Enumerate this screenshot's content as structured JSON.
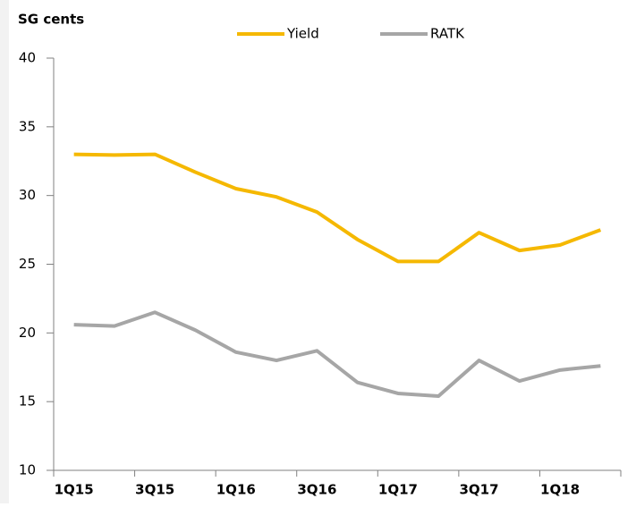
{
  "chart_data": {
    "type": "line",
    "y_label": "SG cents",
    "categories": [
      "1Q15",
      null,
      "3Q15",
      null,
      "1Q16",
      null,
      "3Q16",
      null,
      "1Q17",
      null,
      "3Q17",
      null,
      "1Q18",
      null
    ],
    "series": [
      {
        "name": "Yield",
        "color": "#f5b800",
        "values": [
          33.0,
          32.95,
          33.0,
          31.7,
          30.5,
          29.9,
          28.8,
          26.8,
          25.2,
          25.2,
          27.3,
          26.0,
          26.4,
          27.5
        ]
      },
      {
        "name": "RATK",
        "color": "#a6a6a6",
        "values": [
          20.6,
          20.5,
          21.5,
          20.2,
          18.6,
          18.0,
          18.7,
          16.4,
          15.6,
          15.4,
          18.0,
          16.5,
          17.3,
          17.6
        ]
      }
    ],
    "ylim": [
      10,
      40
    ],
    "yticks": [
      10,
      15,
      20,
      25,
      30,
      35,
      40
    ],
    "grid": false,
    "legend": "top"
  }
}
